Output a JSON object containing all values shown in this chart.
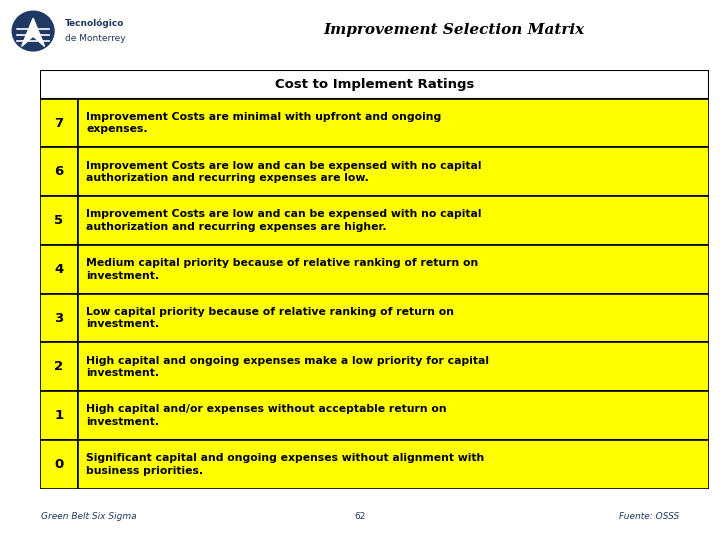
{
  "title": "Improvement Selection Matrix",
  "header": "Cost to Implement Ratings",
  "rows": [
    {
      "rating": "7",
      "description": "Improvement Costs are minimal with upfront and ongoing\nexpenses."
    },
    {
      "rating": "6",
      "description": "Improvement Costs are low and can be expensed with no capital\nauthorization and recurring expenses are low."
    },
    {
      "rating": "5",
      "description": "Improvement Costs are low and can be expensed with no capital\nauthorization and recurring expenses are higher."
    },
    {
      "rating": "4",
      "description": "Medium capital priority because of relative ranking of return on\ninvestment."
    },
    {
      "rating": "3",
      "description": "Low capital priority because of relative ranking of return on\ninvestment."
    },
    {
      "rating": "2",
      "description": "High capital and ongoing expenses make a low priority for capital\ninvestment."
    },
    {
      "rating": "1",
      "description": "High capital and/or expenses without acceptable return on\ninvestment."
    },
    {
      "rating": "0",
      "description": "Significant capital and ongoing expenses without alignment with\nbusiness priorities."
    }
  ],
  "table_bg": "#FFFF00",
  "header_bg": "#FFFFFF",
  "border_color": "#000000",
  "header_text_color": "#000000",
  "row_text_color": "#000000",
  "rating_col_color": "#FFFF00",
  "desc_col_color": "#FFFF00",
  "top_bar_color": "#1F3864",
  "bottom_bar_color": "#1F3864",
  "footer_left": "Green Belt Six Sigma",
  "footer_center": "62",
  "footer_right": "Fuente: OSSS",
  "footer_text_color": "#1F3864",
  "title_color": "#000000",
  "title_fontsize": 11,
  "header_fontsize": 9.5,
  "row_fontsize": 7.8,
  "rating_fontsize": 9.5,
  "footer_fontsize": 6.5,
  "logo_text1": "Tecnológico",
  "logo_text2": "de Monterrey",
  "logo_circle_color": "#1F3864",
  "logo_text_color": "#1F3864"
}
